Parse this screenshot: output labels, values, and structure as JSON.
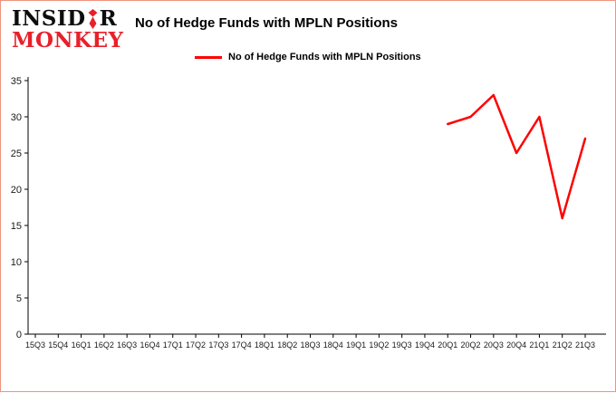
{
  "logo": {
    "word1": "INSIDER",
    "word1_pre": "INSID",
    "word1_post": "R",
    "word2": "MONKEY",
    "tie_color": "#e8202a"
  },
  "header": {
    "title": "No of Hedge Funds with MPLN Positions"
  },
  "legend": {
    "label": "No of Hedge Funds with MPLN Positions",
    "color": "#ff0000"
  },
  "colors": {
    "frame_border": "#f0927f",
    "axis": "#000000",
    "line": "#ff0000"
  },
  "chart_data": {
    "type": "line",
    "title": "No of Hedge Funds with MPLN Positions",
    "xlabel": "",
    "ylabel": "",
    "grid": false,
    "legend_position": "top",
    "ylim": [
      0,
      35
    ],
    "yticks": [
      0,
      5,
      10,
      15,
      20,
      25,
      30,
      35
    ],
    "categories": [
      "15Q3",
      "15Q4",
      "16Q1",
      "16Q2",
      "16Q3",
      "16Q4",
      "17Q1",
      "17Q2",
      "17Q3",
      "17Q4",
      "18Q1",
      "18Q2",
      "18Q3",
      "18Q4",
      "19Q1",
      "19Q2",
      "19Q3",
      "19Q4",
      "20Q1",
      "20Q2",
      "20Q3",
      "20Q4",
      "21Q1",
      "21Q2",
      "21Q3"
    ],
    "series": [
      {
        "name": "No of Hedge Funds with MPLN Positions",
        "color": "#ff0000",
        "values": [
          null,
          null,
          null,
          null,
          null,
          null,
          null,
          null,
          null,
          null,
          null,
          null,
          null,
          null,
          null,
          null,
          null,
          null,
          29,
          30,
          33,
          25,
          30,
          16,
          27
        ]
      }
    ]
  }
}
